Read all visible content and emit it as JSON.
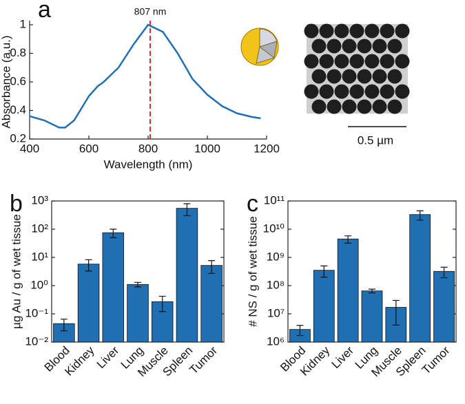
{
  "chart_data": [
    {
      "type": "line",
      "panel": "a",
      "x_label": "Wavelength (nm)",
      "y_label": "Absorbance (a.u.)",
      "x": [
        400,
        450,
        500,
        520,
        550,
        600,
        630,
        650,
        700,
        750,
        800,
        850,
        900,
        950,
        1000,
        1050,
        1100,
        1150,
        1180
      ],
      "series": [
        {
          "color": "#1f6fb2",
          "values": [
            0.36,
            0.33,
            0.28,
            0.28,
            0.33,
            0.5,
            0.57,
            0.6,
            0.7,
            0.86,
            1.0,
            0.95,
            0.8,
            0.62,
            0.51,
            0.43,
            0.38,
            0.355,
            0.345
          ]
        }
      ],
      "xlim": [
        400,
        1200
      ],
      "xticks": [
        400,
        600,
        800,
        1000,
        1200
      ],
      "ylim": [
        0.2,
        1.0
      ],
      "yticks": [
        0.2,
        0.4,
        0.6,
        0.8,
        1
      ],
      "annotation": {
        "x": 807,
        "label": "807 nm",
        "color": "#e8282e"
      },
      "scale_bar_label": "0.5 µm"
    },
    {
      "type": "bar",
      "panel": "b",
      "y_label": "µg Au / g of wet tissue",
      "log_scale": true,
      "color": "#1f6fb2",
      "categories": [
        "Blood",
        "Kidney",
        "Liver",
        "Lung",
        "Muscle",
        "Spleen",
        "Tumor"
      ],
      "values": [
        0.045,
        5.8,
        75,
        1.1,
        0.27,
        550,
        5.2
      ],
      "errors": [
        0.02,
        2.5,
        25,
        0.2,
        0.15,
        250,
        2.5
      ],
      "ylim": [
        0.01,
        1000
      ],
      "yticks": [
        {
          "value": 0.01,
          "label": "10⁻²"
        },
        {
          "value": 0.1,
          "label": "10⁻¹"
        },
        {
          "value": 1,
          "label": "10⁰"
        },
        {
          "value": 10,
          "label": "10¹"
        },
        {
          "value": 100,
          "label": "10²"
        },
        {
          "value": 1000,
          "label": "10³"
        }
      ]
    },
    {
      "type": "bar",
      "panel": "c",
      "y_label": "# NS / g of wet tissue",
      "log_scale": true,
      "color": "#1f6fb2",
      "categories": [
        "Blood",
        "Kidney",
        "Liver",
        "Lung",
        "Muscle",
        "Spleen",
        "Tumor"
      ],
      "values": [
        2800000,
        350000000,
        4500000000,
        65000000,
        17000000,
        33000000000,
        320000000
      ],
      "errors": [
        1100000,
        150000000,
        1300000000,
        10000000,
        13000000,
        12000000000,
        130000000
      ],
      "ylim": [
        1000000,
        100000000000
      ],
      "yticks": [
        {
          "value": 1000000,
          "label": "10⁶"
        },
        {
          "value": 10000000,
          "label": "10⁷"
        },
        {
          "value": 100000000,
          "label": "10⁸"
        },
        {
          "value": 1000000000,
          "label": "10⁹"
        },
        {
          "value": 10000000000,
          "label": "10¹⁰"
        },
        {
          "value": 100000000000,
          "label": "10¹¹"
        }
      ]
    }
  ]
}
